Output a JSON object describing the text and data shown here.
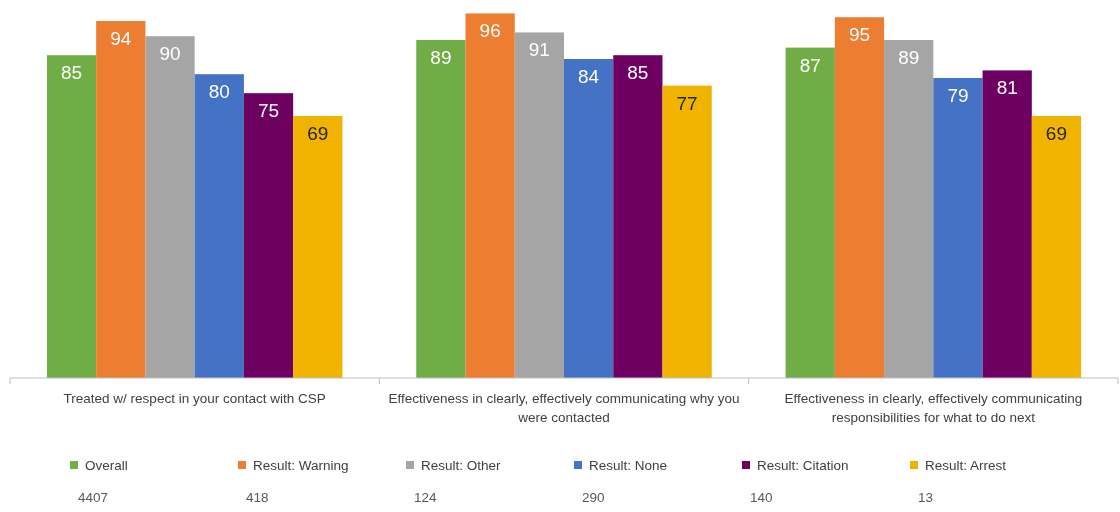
{
  "chart_data": {
    "type": "bar",
    "categories": [
      "Treated w/ respect in your contact with CSP",
      "Effectiveness in clearly, effectively communicating why you were contacted",
      "Effectiveness in clearly, effectively communicating responsibilities for what to do next"
    ],
    "series": [
      {
        "name": "Overall",
        "color": "#70ad47",
        "values": [
          85,
          89,
          87
        ]
      },
      {
        "name": "Result: Warning",
        "color": "#ed7d31",
        "values": [
          94,
          96,
          95
        ]
      },
      {
        "name": "Result: Other",
        "color": "#a5a5a5",
        "values": [
          90,
          91,
          89
        ]
      },
      {
        "name": "Result: None",
        "color": "#4472c4",
        "values": [
          80,
          84,
          79
        ]
      },
      {
        "name": "Result: Citation",
        "color": "#6e0062",
        "values": [
          75,
          85,
          81
        ]
      },
      {
        "name": "Result: Arrest",
        "color": "#f0b400",
        "values": [
          69,
          77,
          69
        ]
      }
    ],
    "data_labels": true,
    "legend": "bottom",
    "annotations": [
      "4407",
      "418",
      "124",
      "290",
      "140",
      "13"
    ]
  }
}
